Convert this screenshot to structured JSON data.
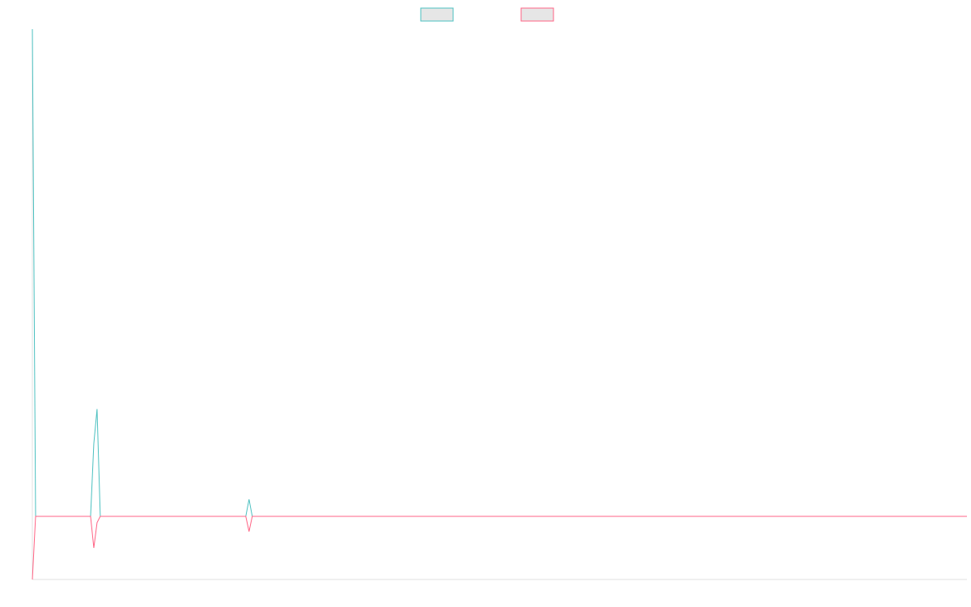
{
  "chart_data": {
    "type": "line",
    "x": [
      0,
      1,
      18,
      19,
      20,
      21,
      66,
      67,
      68,
      289
    ],
    "xlim": [
      0,
      289
    ],
    "ylim": [
      -1,
      7.72
    ],
    "legend": "top",
    "series": [
      {
        "color": "#4bc0c0",
        "fill": "#e6e6e6",
        "values": [
          7.72,
          0,
          0,
          1.15,
          1.7,
          0,
          0,
          0.27,
          0,
          0
        ]
      },
      {
        "color": "#ff6384",
        "fill": "#e6e6e6",
        "values": [
          -1,
          0,
          0,
          -0.5,
          -0.1,
          0,
          0,
          -0.24,
          0,
          0
        ]
      }
    ]
  }
}
